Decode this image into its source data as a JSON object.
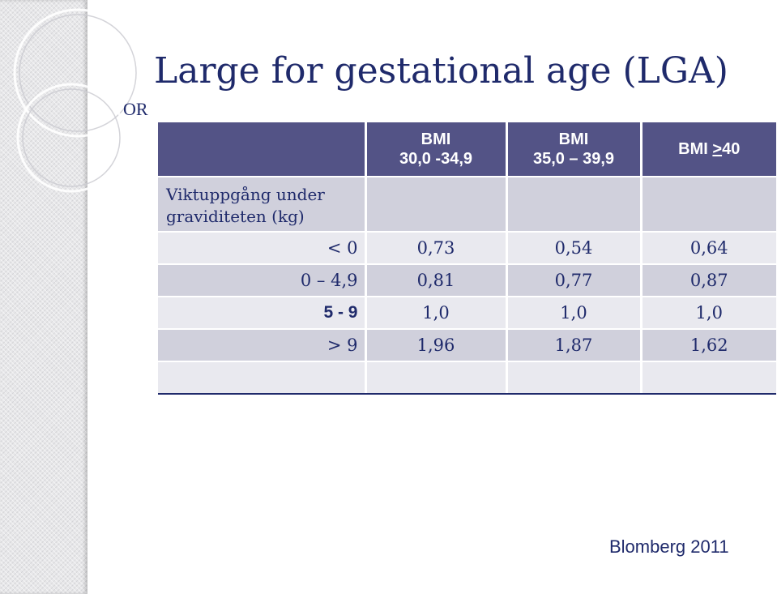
{
  "slide": {
    "title": "Large for gestational age (LGA)",
    "or_label": "OR",
    "source": "Blomberg 2011"
  },
  "table": {
    "row_label_header": "Viktuppgång under graviditeten (kg)",
    "columns": [
      {
        "line1": "BMI",
        "line2": "30,0 -34,9"
      },
      {
        "line1": "BMI",
        "line2": "35,0 – 39,9"
      },
      {
        "line1": "BMI ",
        "underlined": ">",
        "rest": "40"
      }
    ],
    "rows": [
      {
        "label": "< 0",
        "values": [
          "0,73",
          "0,54",
          "0,64"
        ]
      },
      {
        "label": "0 – 4,9",
        "values": [
          "0,81",
          "0,77",
          "0,87"
        ]
      },
      {
        "label": "5 - 9",
        "values": [
          "1,0",
          "1,0",
          "1,0"
        ]
      },
      {
        "label": "> 9",
        "values": [
          "1,96",
          "1,87",
          "1,62"
        ]
      }
    ]
  },
  "colors": {
    "title": "#1f2a6b",
    "header_bg": "#535386",
    "row_dark": "#d0d0dc",
    "row_light": "#e9e9ef"
  }
}
